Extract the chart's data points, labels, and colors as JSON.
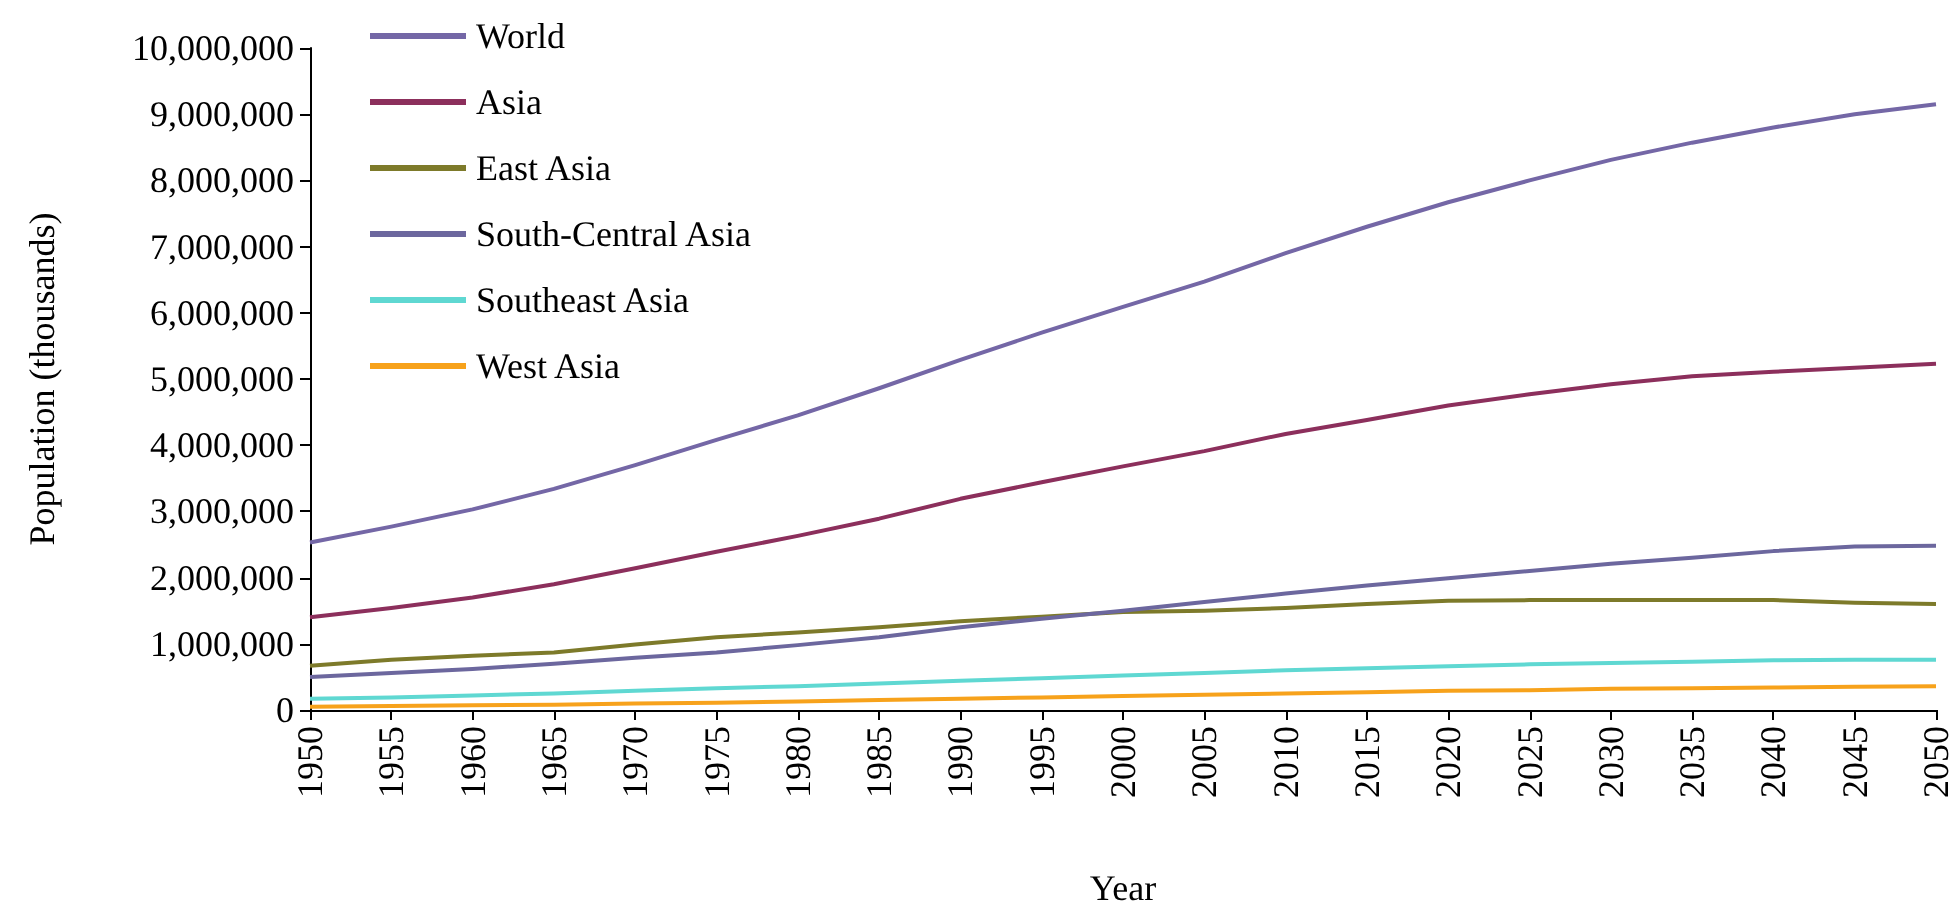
{
  "chart_data": {
    "type": "line",
    "xlabel": "Year",
    "ylabel": "Population (thousands)",
    "x": [
      1950,
      1955,
      1960,
      1965,
      1970,
      1975,
      1980,
      1985,
      1990,
      1995,
      2000,
      2005,
      2010,
      2015,
      2020,
      2025,
      2030,
      2035,
      2040,
      2045,
      2050
    ],
    "series": [
      {
        "name": "World",
        "color": "#7467a6",
        "values": [
          2530000,
          2770000,
          3030000,
          3340000,
          3700000,
          4080000,
          4450000,
          4860000,
          5290000,
          5700000,
          6090000,
          6470000,
          6900000,
          7300000,
          7670000,
          8000000,
          8310000,
          8570000,
          8800000,
          9000000,
          9150000
        ]
      },
      {
        "name": "Asia",
        "color": "#8c2f5c",
        "values": [
          1400000,
          1540000,
          1700000,
          1900000,
          2140000,
          2390000,
          2630000,
          2890000,
          3190000,
          3440000,
          3680000,
          3910000,
          4170000,
          4380000,
          4600000,
          4770000,
          4920000,
          5040000,
          5110000,
          5170000,
          5230000
        ]
      },
      {
        "name": "East Asia",
        "color": "#7d7a2a",
        "values": [
          670000,
          760000,
          820000,
          870000,
          990000,
          1100000,
          1170000,
          1250000,
          1340000,
          1410000,
          1480000,
          1500000,
          1540000,
          1600000,
          1650000,
          1660000,
          1660000,
          1660000,
          1660000,
          1620000,
          1600000
        ]
      },
      {
        "name": "South-Central Asia",
        "color": "#6c679e",
        "values": [
          500000,
          560000,
          620000,
          700000,
          790000,
          870000,
          980000,
          1100000,
          1250000,
          1380000,
          1500000,
          1630000,
          1760000,
          1880000,
          1990000,
          2100000,
          2210000,
          2300000,
          2400000,
          2470000,
          2480000
        ]
      },
      {
        "name": "Southeast Asia",
        "color": "#5fd8d2",
        "values": [
          170000,
          190000,
          220000,
          250000,
          290000,
          330000,
          360000,
          400000,
          440000,
          480000,
          520000,
          560000,
          600000,
          630000,
          660000,
          690000,
          710000,
          730000,
          750000,
          760000,
          760000
        ]
      },
      {
        "name": "West Asia",
        "color": "#f7a21b",
        "values": [
          50000,
          60000,
          70000,
          80000,
          100000,
          110000,
          130000,
          150000,
          170000,
          190000,
          210000,
          230000,
          250000,
          270000,
          290000,
          300000,
          320000,
          330000,
          340000,
          350000,
          360000
        ]
      }
    ],
    "xlim": [
      1950,
      2050
    ],
    "xticks": [
      1950,
      1955,
      1960,
      1965,
      1970,
      1975,
      1980,
      1985,
      1990,
      1995,
      2000,
      2005,
      2010,
      2015,
      2020,
      2025,
      2030,
      2035,
      2040,
      2045,
      2050
    ],
    "ylim": [
      0,
      10000000
    ],
    "yticks": [
      0,
      {
        "value": 1000000,
        "label": "1,000,000"
      },
      {
        "value": 2000000,
        "label": "2,000,000"
      },
      {
        "value": 3000000,
        "label": "3,000,000"
      },
      {
        "value": 4000000,
        "label": "4,000,000"
      },
      {
        "value": 5000000,
        "label": "5,000,000"
      },
      {
        "value": 6000000,
        "label": "6,000,000"
      },
      {
        "value": 7000000,
        "label": "7,000,000"
      },
      {
        "value": 8000000,
        "label": "8,000,000"
      },
      {
        "value": 9000000,
        "label": "9,000,000"
      },
      {
        "value": 10000000,
        "label": "10,000,000"
      }
    ],
    "grid": false,
    "legend": "top left",
    "marker": "none",
    "line_style": "solid"
  }
}
